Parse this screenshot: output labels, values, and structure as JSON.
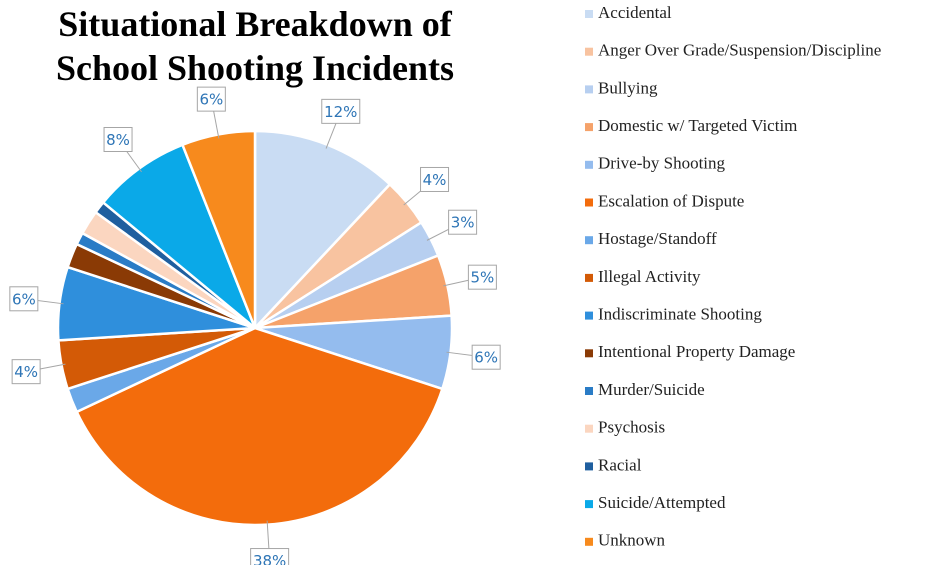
{
  "chart_data": {
    "type": "pie",
    "title": "Situational Breakdown of School Shooting Incidents",
    "categories": [
      "Accidental",
      "Anger Over Grade/Suspension/Discipline",
      "Bullying",
      "Domestic w/ Targeted Victim",
      "Drive-by Shooting",
      "Escalation of Dispute",
      "Hostage/Standoff",
      "Illegal Activity",
      "Indiscriminate Shooting",
      "Intentional Property Damage",
      "Murder/Suicide",
      "Psychosis",
      "Racial",
      "Suicide/Attempted",
      "Unknown"
    ],
    "values": [
      12,
      4,
      3,
      5,
      6,
      38,
      2,
      4,
      6,
      2,
      1,
      2,
      1,
      8,
      6
    ],
    "value_labels": [
      "12%",
      "4%",
      "3%",
      "5%",
      "6%",
      "38%",
      null,
      "4%",
      "6%",
      null,
      null,
      null,
      null,
      "8%",
      "6%"
    ],
    "colors": [
      "#c9dcf3",
      "#f8c3a0",
      "#b7cff0",
      "#f5a26a",
      "#94bcee",
      "#f36c0c",
      "#6aa8e8",
      "#d35a06",
      "#2f8fdc",
      "#8a3a05",
      "#2a7cc6",
      "#fbd6c0",
      "#1f5f9f",
      "#0aa9e8",
      "#f78a1d"
    ],
    "legend": "right"
  }
}
